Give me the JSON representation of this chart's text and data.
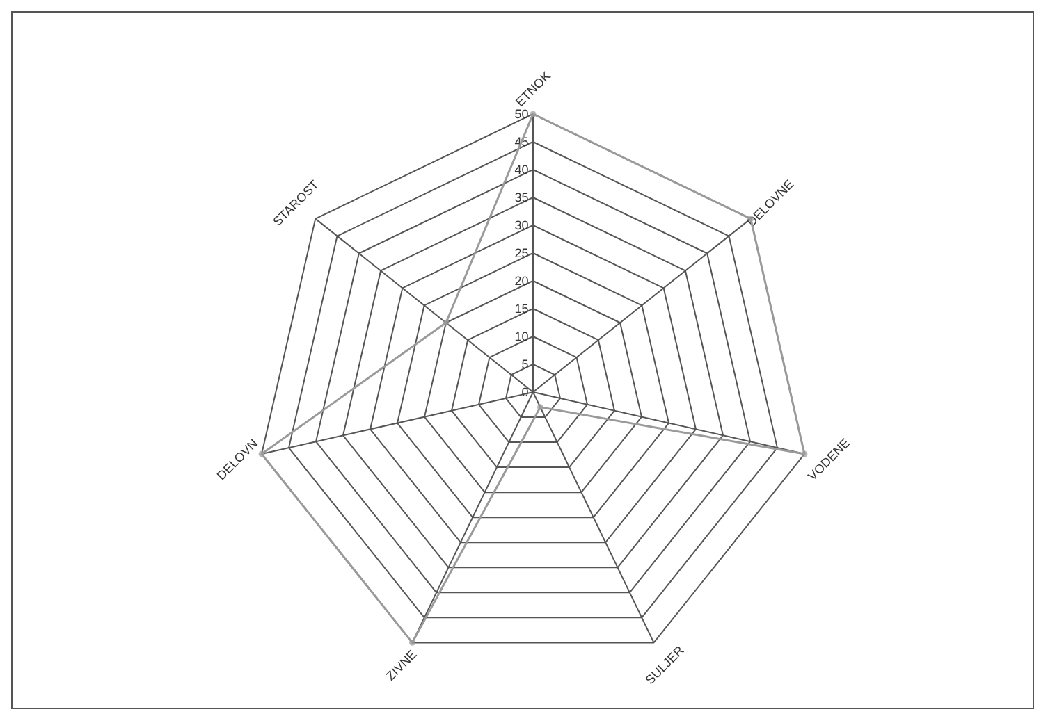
{
  "chart_data": {
    "type": "radar",
    "categories": [
      "ETNOK",
      "DELOVNE",
      "VODENE",
      "SULJER",
      "ZIVNE",
      "DELOVN",
      "STAROST"
    ],
    "series": [
      {
        "color": "#9a9a9a",
        "values": [
          50,
          50,
          50,
          3,
          50,
          50,
          20
        ]
      }
    ],
    "ylim": [
      0,
      50
    ],
    "yticks": [
      0,
      5,
      10,
      15,
      20,
      25,
      30,
      35,
      40,
      45,
      50
    ],
    "grid": true,
    "marker": "circle"
  }
}
